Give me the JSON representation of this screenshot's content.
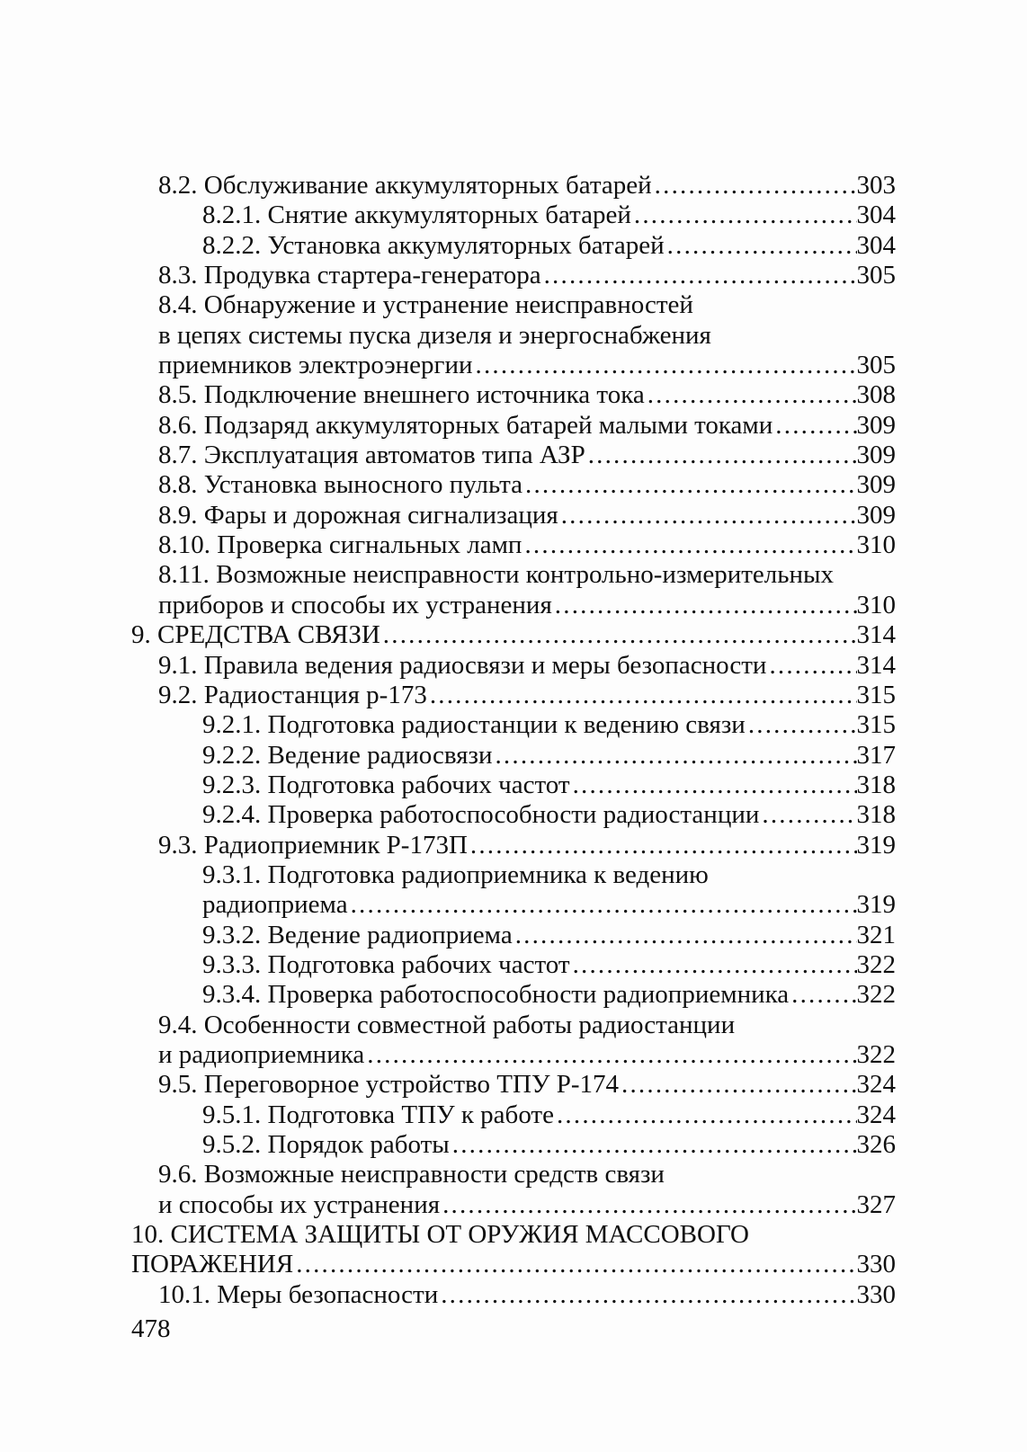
{
  "footer": {
    "page_number": "478"
  },
  "toc": {
    "lines": [
      {
        "indent": 1,
        "text": "8.2. Обслуживание аккумуляторных батарей",
        "page": "303"
      },
      {
        "indent": 2,
        "text": "8.2.1. Снятие аккумуляторных батарей",
        "page": "304"
      },
      {
        "indent": 2,
        "text": "8.2.2. Установка аккумуляторных батарей",
        "page": "304"
      },
      {
        "indent": 1,
        "text": "8.3. Продувка стартера-генератора",
        "page": "305"
      },
      {
        "indent": 1,
        "text": "8.4. Обнаружение и устранение неисправностей",
        "page": null
      },
      {
        "indent": 1,
        "text": "в цепях системы пуска дизеля и энергоснабжения",
        "page": null
      },
      {
        "indent": 1,
        "text": "приемников электроэнергии",
        "page": "305"
      },
      {
        "indent": 1,
        "text": "8.5. Подключение внешнего источника тока",
        "page": "308"
      },
      {
        "indent": 1,
        "text": "8.6. Подзаряд аккумуляторных батарей малыми токами",
        "page": "309"
      },
      {
        "indent": 1,
        "text": "8.7. Эксплуатация автоматов типа АЗР",
        "page": "309"
      },
      {
        "indent": 1,
        "text": "8.8. Установка выносного пульта",
        "page": "309"
      },
      {
        "indent": 1,
        "text": "8.9. Фары и дорожная сигнализация",
        "page": "309"
      },
      {
        "indent": 1,
        "text": "8.10. Проверка сигнальных ламп",
        "page": "310"
      },
      {
        "indent": 1,
        "text": "8.11. Возможные неисправности контрольно-измерительных",
        "page": null
      },
      {
        "indent": 1,
        "text": "приборов и способы их устранения",
        "page": "310"
      },
      {
        "indent": 0,
        "text": "9. СРЕДСТВА СВЯЗИ",
        "page": "314"
      },
      {
        "indent": 1,
        "text": "9.1. Правила ведения радиосвязи и меры безопасности",
        "page": "314"
      },
      {
        "indent": 1,
        "text": "9.2. Радиостанция р-173",
        "page": "315"
      },
      {
        "indent": 2,
        "text": "9.2.1. Подготовка радиостанции к ведению связи",
        "page": "315"
      },
      {
        "indent": 2,
        "text": "9.2.2. Ведение радиосвязи",
        "page": "317"
      },
      {
        "indent": 2,
        "text": "9.2.3. Подготовка рабочих частот",
        "page": "318"
      },
      {
        "indent": 2,
        "text": "9.2.4. Проверка работоспособности радиостанции",
        "page": "318"
      },
      {
        "indent": 1,
        "text": "9.3. Радиоприемник Р-173П",
        "page": "319"
      },
      {
        "indent": 2,
        "text": "9.3.1. Подготовка радиоприемника к ведению",
        "page": null
      },
      {
        "indent": 2,
        "text": "радиоприема",
        "page": "319"
      },
      {
        "indent": 2,
        "text": "9.3.2. Ведение радиоприема",
        "page": "321"
      },
      {
        "indent": 2,
        "text": "9.3.3. Подготовка рабочих частот",
        "page": "322"
      },
      {
        "indent": 2,
        "text": "9.3.4. Проверка работоспособности радиоприемника",
        "page": "322"
      },
      {
        "indent": 1,
        "text": "9.4. Особенности совместной работы радиостанции",
        "page": null
      },
      {
        "indent": 1,
        "text": "и радиоприемника",
        "page": "322"
      },
      {
        "indent": 1,
        "text": "9.5. Переговорное устройство ТПУ Р-174",
        "page": "324"
      },
      {
        "indent": 2,
        "text": "9.5.1. Подготовка ТПУ к работе",
        "page": "324"
      },
      {
        "indent": 2,
        "text": "9.5.2. Порядок работы",
        "page": "326"
      },
      {
        "indent": 1,
        "text": "9.6. Возможные неисправности средств связи",
        "page": null
      },
      {
        "indent": 1,
        "text": "и способы их устранения",
        "page": "327"
      },
      {
        "indent": 0,
        "text": "10. СИСТЕМА ЗАЩИТЫ ОТ ОРУЖИЯ МАССОВОГО",
        "page": null
      },
      {
        "indent": 0,
        "text": "ПОРАЖЕНИЯ",
        "page": "330"
      },
      {
        "indent": 1,
        "text": "10.1. Меры безопасности",
        "page": "330"
      }
    ]
  }
}
